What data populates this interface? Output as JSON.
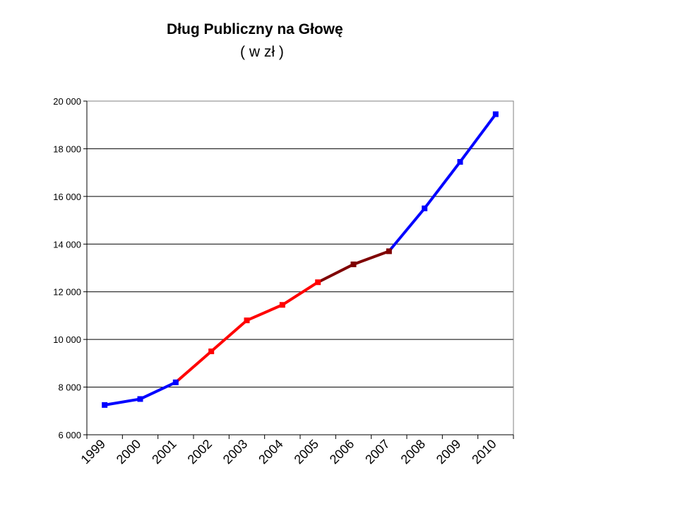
{
  "chart_data": {
    "type": "line",
    "title": "Dług Publiczny na Głowę",
    "subtitle": "( w zł )",
    "categories": [
      "1999",
      "2000",
      "2001",
      "2002",
      "2003",
      "2004",
      "2005",
      "2006",
      "2007",
      "2008",
      "2009",
      "2010"
    ],
    "values": [
      7250,
      7500,
      8200,
      9500,
      10800,
      11450,
      12400,
      13150,
      13700,
      15500,
      17450,
      19450
    ],
    "segments": [
      {
        "from": 0,
        "to": 2,
        "color": "#0000ff"
      },
      {
        "from": 2,
        "to": 6,
        "color": "#ff0000"
      },
      {
        "from": 6,
        "to": 8,
        "color": "#7f0000"
      },
      {
        "from": 8,
        "to": 11,
        "color": "#0000ff"
      }
    ],
    "marker_colors": [
      "#0000ff",
      "#0000ff",
      "#0000ff",
      "#ff0000",
      "#ff0000",
      "#ff0000",
      "#ff0000",
      "#7f0000",
      "#7f0000",
      "#0000ff",
      "#0000ff",
      "#0000ff"
    ],
    "ylim": [
      6000,
      20000
    ],
    "yticks": [
      6000,
      8000,
      10000,
      12000,
      14000,
      16000,
      18000,
      20000
    ],
    "ytick_labels": [
      "6 000",
      "8 000",
      "10 000",
      "12 000",
      "14 000",
      "16 000",
      "18 000",
      "20 000"
    ],
    "grid": true,
    "xlabel": "",
    "ylabel": ""
  }
}
